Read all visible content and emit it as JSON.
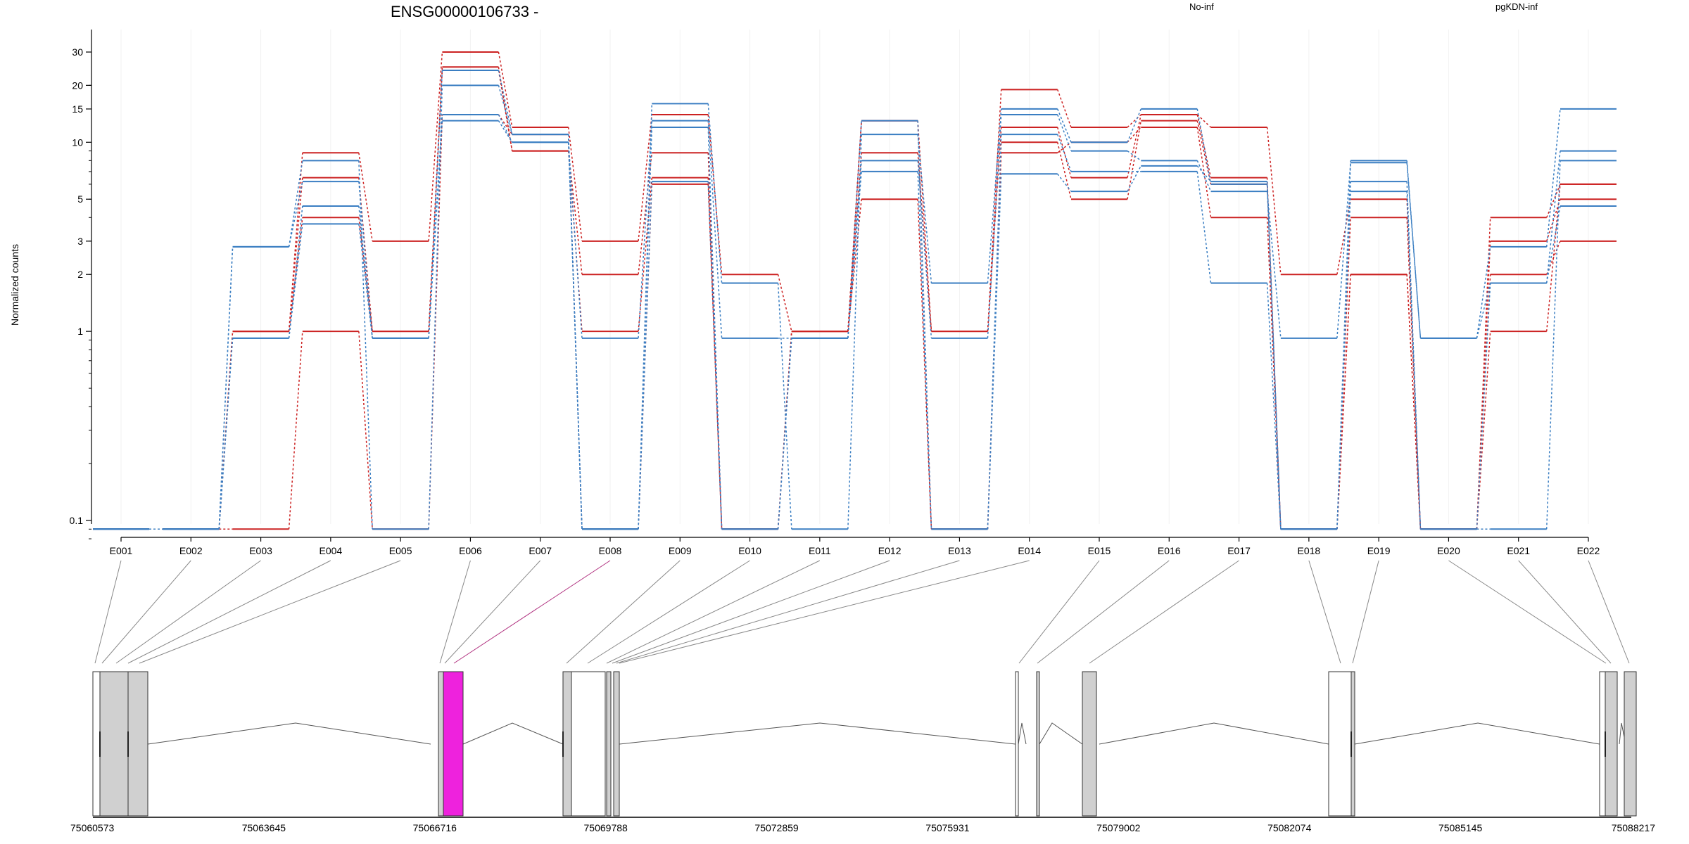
{
  "chart_data": {
    "type": "line",
    "title": "ENSG00000106733 -",
    "ylabel": "Normalized counts",
    "y_scale": "log",
    "ylim": [
      0.07,
      35
    ],
    "y_ticks": [
      {
        "value": 0.1,
        "label": "0.1"
      },
      {
        "value": 1,
        "label": "1"
      },
      {
        "value": 2,
        "label": "2"
      },
      {
        "value": 3,
        "label": "3"
      },
      {
        "value": 5,
        "label": "5"
      },
      {
        "value": 10,
        "label": "10"
      },
      {
        "value": 15,
        "label": "15"
      },
      {
        "value": 20,
        "label": "20"
      },
      {
        "value": 30,
        "label": "30"
      }
    ],
    "legend": [
      {
        "label": "No-inf",
        "color": "#cc2222"
      },
      {
        "label": "pgKDN-inf",
        "color": "#3a7ec2"
      }
    ],
    "legend_position": "top",
    "categories": [
      "E001",
      "E002",
      "E003",
      "E004",
      "E005",
      "E006",
      "E007",
      "E008",
      "E009",
      "E010",
      "E011",
      "E012",
      "E013",
      "E014",
      "E015",
      "E016",
      "E017",
      "E018",
      "E019",
      "E020",
      "E021",
      "E022"
    ],
    "series": [
      {
        "group": "No-inf",
        "color": "#cc2222",
        "values": [
          0.09,
          0.09,
          1,
          8.8,
          3,
          30,
          12,
          3,
          14,
          2,
          1,
          13,
          1,
          19,
          12,
          14,
          12,
          2,
          5,
          0.09,
          4,
          6
        ]
      },
      {
        "group": "No-inf",
        "color": "#cc2222",
        "values": [
          0.09,
          0.09,
          1,
          6.5,
          1,
          25,
          9,
          2,
          8.8,
          0.09,
          1,
          8.8,
          1,
          12,
          6.5,
          14,
          6.5,
          0.09,
          4,
          0.09,
          3,
          5
        ]
      },
      {
        "group": "No-inf",
        "color": "#cc2222",
        "values": [
          0.09,
          0.09,
          1,
          4,
          1,
          24,
          9,
          1,
          6.5,
          0.09,
          1,
          5,
          0.09,
          10,
          5,
          13,
          6,
          0.09,
          2,
          0.09,
          2,
          3
        ]
      },
      {
        "group": "No-inf",
        "color": "#cc2222",
        "values": [
          0.09,
          0.09,
          0.09,
          1,
          0.09,
          14,
          11,
          0.09,
          6,
          0.09,
          1,
          13,
          0.09,
          8.8,
          10,
          12,
          4,
          0.09,
          2,
          0.09,
          1,
          6
        ]
      },
      {
        "group": "pgKDN-inf",
        "color": "#3a7ec2",
        "values": [
          0.09,
          0.09,
          2.8,
          8,
          0.09,
          20,
          11,
          0.09,
          16,
          1.8,
          0.09,
          11,
          1.8,
          15,
          10,
          15,
          6,
          0.09,
          8,
          0.92,
          2.8,
          15
        ]
      },
      {
        "group": "pgKDN-inf",
        "color": "#3a7ec2",
        "values": [
          0.09,
          0.09,
          2.8,
          6.2,
          0.92,
          14,
          10,
          0.92,
          13,
          0.92,
          0.92,
          8,
          0.92,
          14,
          9,
          8,
          5.5,
          0.92,
          7.8,
          0.92,
          1.8,
          9
        ]
      },
      {
        "group": "pgKDN-inf",
        "color": "#3a7ec2",
        "values": [
          0.09,
          0.09,
          0.92,
          4.6,
          0.92,
          13,
          10,
          0.09,
          12,
          0.09,
          0.92,
          7,
          0.09,
          11,
          7,
          7,
          1.8,
          0.09,
          5.5,
          0.09,
          0.09,
          8
        ]
      },
      {
        "group": "pgKDN-inf",
        "color": "#3a7ec2",
        "values": [
          0.09,
          0.09,
          0.92,
          3.7,
          0.92,
          24,
          11,
          0.09,
          6.2,
          0.09,
          0.92,
          13,
          0.09,
          6.8,
          5.5,
          7.5,
          6.2,
          0.09,
          6.2,
          0.09,
          1.8,
          4.6
        ]
      }
    ],
    "genomic_axis": {
      "ticks": [
        "75060573",
        "75063645",
        "75066716",
        "75069788",
        "75072859",
        "75075931",
        "75079002",
        "75082074",
        "75085145",
        "75088217"
      ]
    },
    "highlighted_exon": "E008",
    "highlight_color": "#ee22dd"
  }
}
